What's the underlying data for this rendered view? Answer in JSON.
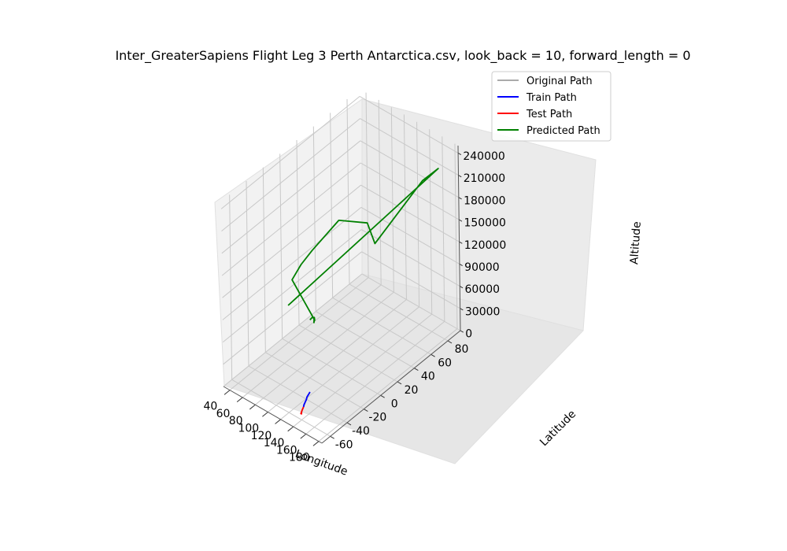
{
  "chart_data": {
    "type": "line3d",
    "title": "Inter_GreaterSapiens Flight Leg 3 Perth Antarctica.csv, look_back = 10, forward_length = 0",
    "xlabel": "Longitude",
    "ylabel": "Latitude",
    "zlabel": "Altitude",
    "xlim": [
      30,
      185
    ],
    "ylim": [
      -70,
      95
    ],
    "zlim": [
      0,
      250000
    ],
    "xticks": [
      "40",
      "60",
      "80",
      "100",
      "120",
      "140",
      "160",
      "180"
    ],
    "yticks": [
      "-60",
      "-40",
      "-20",
      "0",
      "20",
      "40",
      "60",
      "80"
    ],
    "zticks": [
      "0",
      "30000",
      "60000",
      "90000",
      "120000",
      "150000",
      "180000",
      "210000",
      "240000"
    ],
    "grid": true,
    "legend_position": "top-right",
    "series": [
      {
        "name": "Original Path",
        "color": "#aaaaaa",
        "points": [
          [
            116,
            -32,
            0
          ],
          [
            117,
            -34,
            0
          ],
          [
            119,
            -37,
            0
          ],
          [
            121,
            -40,
            0
          ],
          [
            124,
            -44,
            0
          ],
          [
            127,
            -48,
            0
          ],
          [
            130,
            -52,
            0
          ],
          [
            133,
            -55,
            0
          ]
        ]
      },
      {
        "name": "Train Path",
        "color": "#0000ff",
        "points": [
          [
            116,
            -32,
            0
          ],
          [
            117,
            -34,
            0
          ],
          [
            118,
            -36,
            0
          ],
          [
            119,
            -38,
            0
          ],
          [
            121,
            -40,
            0
          ],
          [
            123,
            -43,
            0
          ],
          [
            125,
            -46,
            0
          ],
          [
            127,
            -48,
            0
          ]
        ]
      },
      {
        "name": "Test Path",
        "color": "#ff0000",
        "points": [
          [
            127,
            -48,
            0
          ],
          [
            129,
            -51,
            0
          ],
          [
            132,
            -55,
            0
          ],
          [
            133,
            -55,
            0
          ],
          [
            133,
            -55,
            2000
          ]
        ]
      },
      {
        "name": "Predicted Path",
        "color": "#008000",
        "points": [
          [
            85,
            -8,
            60000
          ],
          [
            86,
            -6,
            62000
          ],
          [
            88,
            -5,
            62000
          ],
          [
            90,
            -6,
            60000
          ],
          [
            92,
            -8,
            63000
          ],
          [
            90,
            -7,
            58000
          ],
          [
            93,
            -9,
            66000
          ],
          [
            40,
            5,
            80000
          ],
          [
            48,
            10,
            100000
          ],
          [
            55,
            18,
            115000
          ],
          [
            75,
            35,
            150000
          ],
          [
            100,
            50,
            145000
          ],
          [
            105,
            55,
            115000
          ],
          [
            175,
            60,
            230000
          ],
          [
            180,
            75,
            235000
          ],
          [
            40,
            0,
            50000
          ]
        ]
      }
    ]
  }
}
